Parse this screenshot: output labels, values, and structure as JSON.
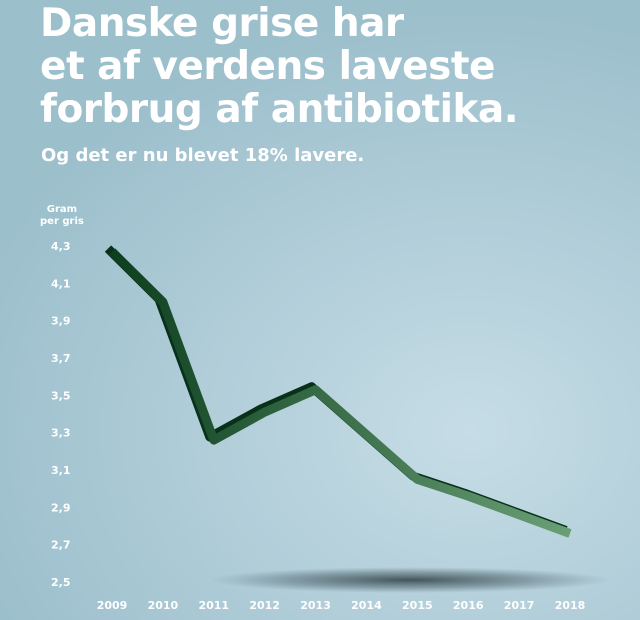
{
  "header": {
    "title_lines": [
      "Danske grise har",
      "et af verdens laveste",
      "forbrug af antibiotika."
    ],
    "subtitle": "Og det er nu blevet 18% lavere."
  },
  "chart_data": {
    "type": "line",
    "title": "Danske grise har et af verdens laveste forbrug af antibiotika.",
    "subtitle": "Og det er nu blevet 18% lavere.",
    "ylabel_lines": [
      "Gram",
      "per gris"
    ],
    "xlabel": "",
    "x": [
      2009,
      2010,
      2011,
      2012,
      2013,
      2014,
      2015,
      2016,
      2017,
      2018
    ],
    "x_tick_labels": [
      "2009",
      "2010",
      "2011",
      "2012",
      "2013",
      "2014",
      "2015",
      "2016",
      "2017",
      "2018"
    ],
    "y_tick_labels": [
      "4,3",
      "4,1",
      "3,9",
      "3,7",
      "3,5",
      "3,3",
      "3,1",
      "2,9",
      "2,7",
      "2,5"
    ],
    "y_ticks": [
      4.3,
      4.1,
      3.9,
      3.7,
      3.5,
      3.3,
      3.1,
      2.9,
      2.7,
      2.5
    ],
    "ylim": [
      2.5,
      4.3
    ],
    "series": [
      {
        "values": [
          4.27,
          4.0,
          3.26,
          3.41,
          3.53,
          3.29,
          3.05,
          2.96,
          2.86,
          2.76
        ]
      }
    ],
    "grid": false,
    "line_color_start": "#0d3f1f",
    "line_color_end": "#6a9f76"
  }
}
